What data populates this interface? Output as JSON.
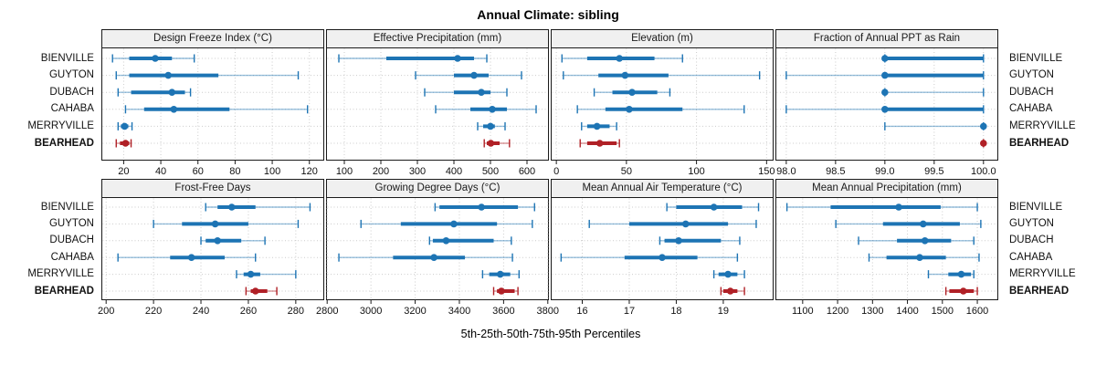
{
  "chart_data": {
    "type": "interval",
    "title": "Annual Climate: sibling",
    "caption": "5th-25th-50th-75th-95th Percentiles",
    "percentiles": [
      "5th",
      "25th",
      "50th",
      "75th",
      "95th"
    ],
    "stations": [
      "BIENVILLE",
      "GUYTON",
      "DUBACH",
      "CAHABA",
      "MERRYVILLE",
      "BEARHEAD"
    ],
    "highlight_station": "BEARHEAD",
    "colors": {
      "series": "#1d74b4",
      "highlight": "#b02026",
      "strip_bg": "#f0f0f0",
      "border": "#1a1a1a",
      "grid": "#cccccc"
    },
    "layout_hints": {
      "rows": 2,
      "cols": 4,
      "grid": "dotted",
      "labels_both_sides": true,
      "legend": "none"
    },
    "panels": [
      {
        "title": "Design Freeze Index (°C)",
        "row": 1,
        "xlim": [
          8,
          128
        ],
        "ticks": [
          20,
          40,
          60,
          80,
          100,
          120
        ],
        "tick_labels": [
          "20",
          "40",
          "60",
          "80",
          "100",
          "120"
        ],
        "series": [
          {
            "station": "BIENVILLE",
            "p": [
              14,
              23,
              37,
              46,
              58
            ]
          },
          {
            "station": "GUYTON",
            "p": [
              16,
              23,
              44,
              71,
              114
            ]
          },
          {
            "station": "DUBACH",
            "p": [
              17,
              24,
              46,
              53,
              56
            ]
          },
          {
            "station": "CAHABA",
            "p": [
              21,
              31,
              47,
              77,
              119
            ]
          },
          {
            "station": "MERRYVILLE",
            "p": [
              17,
              18.5,
              20.5,
              22.5,
              24.5
            ]
          },
          {
            "station": "BEARHEAD",
            "p": [
              16,
              18,
              21,
              23,
              24
            ]
          }
        ]
      },
      {
        "title": "Effective Precipitation (mm)",
        "row": 1,
        "xlim": [
          50,
          660
        ],
        "ticks": [
          100,
          200,
          300,
          400,
          500,
          600
        ],
        "tick_labels": [
          "100",
          "200",
          "300",
          "400",
          "500",
          "600"
        ],
        "series": [
          {
            "station": "BIENVILLE",
            "p": [
              85,
              215,
              410,
              455,
              490
            ]
          },
          {
            "station": "GUYTON",
            "p": [
              295,
              400,
              455,
              495,
              585
            ]
          },
          {
            "station": "DUBACH",
            "p": [
              320,
              400,
              475,
              500,
              545
            ]
          },
          {
            "station": "CAHABA",
            "p": [
              350,
              445,
              505,
              545,
              625
            ]
          },
          {
            "station": "MERRYVILLE",
            "p": [
              465,
              480,
              500,
              512,
              540
            ]
          },
          {
            "station": "BEARHEAD",
            "p": [
              483,
              490,
              501,
              525,
              552
            ]
          }
        ]
      },
      {
        "title": "Elevation (m)",
        "row": 1,
        "xlim": [
          -4,
          155
        ],
        "ticks": [
          0,
          50,
          100,
          150
        ],
        "tick_labels": [
          "0",
          "50",
          "100",
          "150"
        ],
        "series": [
          {
            "station": "BIENVILLE",
            "p": [
              4,
              22,
              45,
              70,
              90
            ]
          },
          {
            "station": "GUYTON",
            "p": [
              5,
              30,
              49,
              80,
              145
            ]
          },
          {
            "station": "DUBACH",
            "p": [
              27,
              40,
              54,
              72,
              81
            ]
          },
          {
            "station": "CAHABA",
            "p": [
              15,
              35,
              52,
              90,
              134
            ]
          },
          {
            "station": "MERRYVILLE",
            "p": [
              18,
              22,
              29,
              38,
              43
            ]
          },
          {
            "station": "BEARHEAD",
            "p": [
              17,
              22,
              31,
              43,
              45
            ]
          }
        ]
      },
      {
        "title": "Fraction of Annual PPT as Rain",
        "row": 1,
        "xlim": [
          97.89,
          100.15
        ],
        "ticks": [
          98.0,
          98.5,
          99.0,
          99.5,
          100.0
        ],
        "tick_labels": [
          "98.0",
          "98.5",
          "99.0",
          "99.5",
          "100.0"
        ],
        "series": [
          {
            "station": "BIENVILLE",
            "p": [
              99,
              99,
              99,
              100,
              100
            ]
          },
          {
            "station": "GUYTON",
            "p": [
              98,
              99,
              99,
              100,
              100
            ]
          },
          {
            "station": "DUBACH",
            "p": [
              99,
              99,
              99,
              99,
              100
            ]
          },
          {
            "station": "CAHABA",
            "p": [
              98,
              99,
              99,
              100,
              100
            ]
          },
          {
            "station": "MERRYVILLE",
            "p": [
              99,
              100,
              100,
              100,
              100
            ]
          },
          {
            "station": "BEARHEAD",
            "p": [
              100,
              100,
              100,
              100,
              100
            ]
          }
        ]
      },
      {
        "title": "Frost-Free Days",
        "row": 2,
        "xlim": [
          198,
          292
        ],
        "ticks": [
          200,
          220,
          240,
          260,
          280
        ],
        "tick_labels": [
          "200",
          "220",
          "240",
          "260",
          "280"
        ],
        "series": [
          {
            "station": "BIENVILLE",
            "p": [
              242,
              247,
              253,
              263,
              286
            ]
          },
          {
            "station": "GUYTON",
            "p": [
              220,
              232,
              246,
              260,
              281
            ]
          },
          {
            "station": "DUBACH",
            "p": [
              240,
              242,
              247,
              257,
              267
            ]
          },
          {
            "station": "CAHABA",
            "p": [
              205,
              227,
              236,
              250,
              263
            ]
          },
          {
            "station": "MERRYVILLE",
            "p": [
              255,
              258,
              261,
              265,
              280
            ]
          },
          {
            "station": "BEARHEAD",
            "p": [
              259,
              261,
              263,
              268,
              272
            ]
          }
        ]
      },
      {
        "title": "Growing Degree Days (°C)",
        "row": 2,
        "xlim": [
          2797,
          3805
        ],
        "ticks": [
          2800,
          3000,
          3200,
          3400,
          3600,
          3800
        ],
        "tick_labels": [
          "2800",
          "3000",
          "3200",
          "3400",
          "3600",
          "3800"
        ],
        "series": [
          {
            "station": "BIENVILLE",
            "p": [
              3290,
              3310,
              3500,
              3665,
              3740
            ]
          },
          {
            "station": "GUYTON",
            "p": [
              2955,
              3135,
              3375,
              3570,
              3730
            ]
          },
          {
            "station": "DUBACH",
            "p": [
              3265,
              3280,
              3340,
              3555,
              3635
            ]
          },
          {
            "station": "CAHABA",
            "p": [
              2855,
              3100,
              3285,
              3425,
              3640
            ]
          },
          {
            "station": "MERRYVILLE",
            "p": [
              3505,
              3535,
              3585,
              3630,
              3670
            ]
          },
          {
            "station": "BEARHEAD",
            "p": [
              3555,
              3570,
              3590,
              3650,
              3665
            ]
          }
        ]
      },
      {
        "title": "Mean Annual Air Temperature (°C)",
        "row": 2,
        "xlim": [
          15.33,
          20.07
        ],
        "ticks": [
          16,
          17,
          18,
          19
        ],
        "tick_labels": [
          "16",
          "17",
          "18",
          "19"
        ],
        "series": [
          {
            "station": "BIENVILLE",
            "p": [
              17.8,
              18.0,
              18.8,
              19.4,
              19.75
            ]
          },
          {
            "station": "GUYTON",
            "p": [
              16.15,
              17.0,
              18.2,
              19.1,
              19.7
            ]
          },
          {
            "station": "DUBACH",
            "p": [
              17.65,
              17.75,
              18.05,
              18.95,
              19.35
            ]
          },
          {
            "station": "CAHABA",
            "p": [
              15.55,
              16.9,
              17.7,
              18.45,
              19.3
            ]
          },
          {
            "station": "MERRYVILLE",
            "p": [
              18.8,
              18.9,
              19.1,
              19.3,
              19.45
            ]
          },
          {
            "station": "BEARHEAD",
            "p": [
              18.95,
              19.0,
              19.15,
              19.3,
              19.45
            ]
          }
        ]
      },
      {
        "title": "Mean Annual Precipitation (mm)",
        "row": 2,
        "xlim": [
          1022,
          1660
        ],
        "ticks": [
          1100,
          1200,
          1300,
          1400,
          1500,
          1600
        ],
        "tick_labels": [
          "1100",
          "1200",
          "1300",
          "1400",
          "1500",
          "1600"
        ],
        "series": [
          {
            "station": "BIENVILLE",
            "p": [
              1055,
              1180,
              1375,
              1495,
              1600
            ]
          },
          {
            "station": "GUYTON",
            "p": [
              1195,
              1330,
              1445,
              1550,
              1610
            ]
          },
          {
            "station": "DUBACH",
            "p": [
              1260,
              1370,
              1450,
              1525,
              1590
            ]
          },
          {
            "station": "CAHABA",
            "p": [
              1290,
              1340,
              1435,
              1510,
              1605
            ]
          },
          {
            "station": "MERRYVILLE",
            "p": [
              1460,
              1517,
              1554,
              1582,
              1590
            ]
          },
          {
            "station": "BEARHEAD",
            "p": [
              1510,
              1520,
              1560,
              1590,
              1600
            ]
          }
        ]
      }
    ]
  }
}
